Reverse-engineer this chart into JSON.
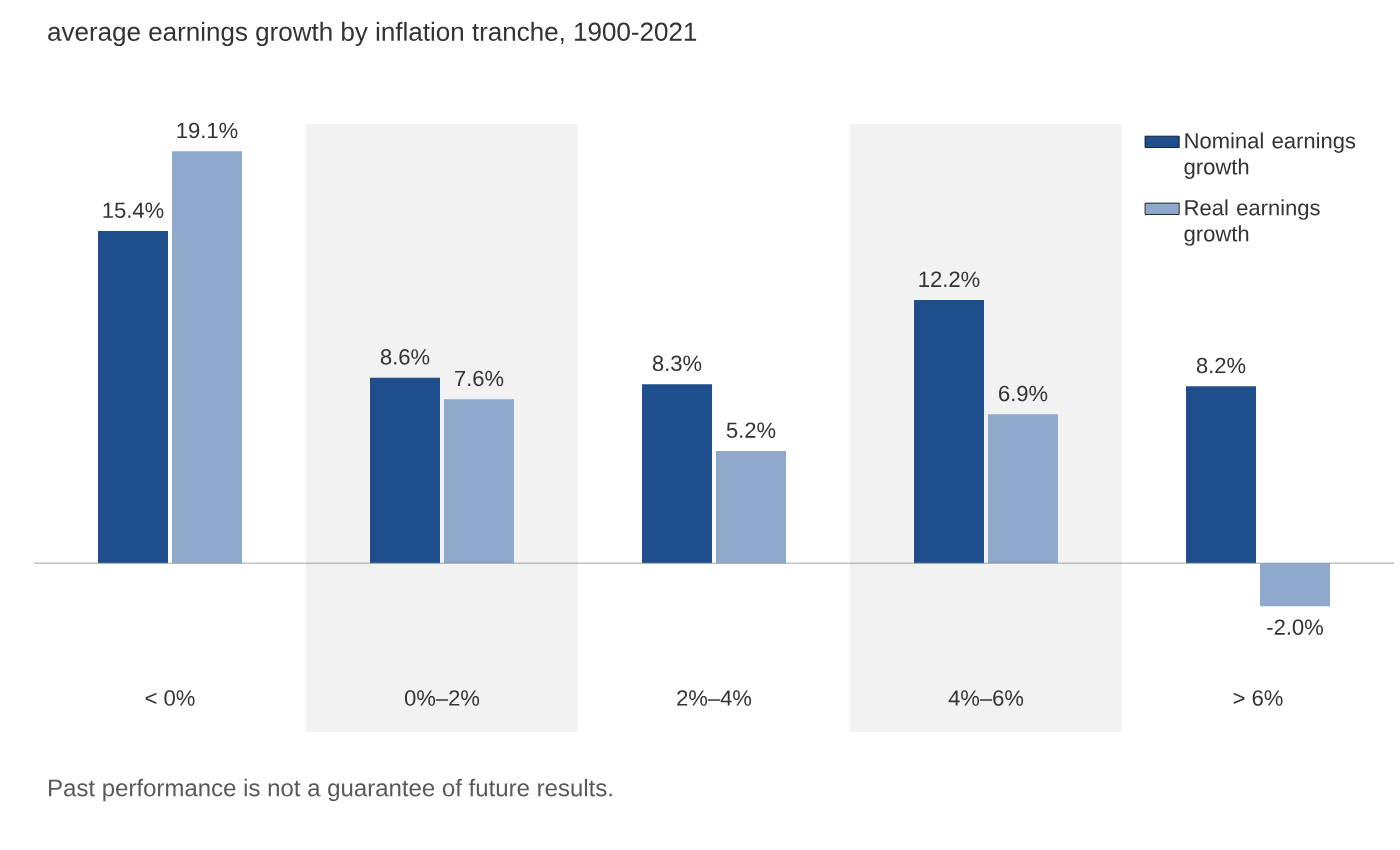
{
  "chart_data": {
    "type": "bar",
    "title": "average earnings growth by inflation tranche, 1900-2021",
    "categories": [
      "< 0%",
      "0%–2%",
      "2%–4%",
      "4%–6%",
      "> 6%"
    ],
    "series": [
      {
        "name": "Nominal earnings growth",
        "color": "#1f4e8c",
        "values": [
          15.4,
          8.6,
          8.3,
          12.2,
          8.2
        ],
        "value_labels": [
          "15.4%",
          "8.6%",
          "8.3%",
          "12.2%",
          "8.2%"
        ]
      },
      {
        "name": "Real earnings growth",
        "color": "#8fa9cc",
        "values": [
          19.1,
          7.6,
          5.2,
          6.9,
          -2.0
        ],
        "value_labels": [
          "19.1%",
          "7.6%",
          "5.2%",
          "6.9%",
          "-2.0%"
        ]
      }
    ],
    "bands": [
      {
        "axis": "x",
        "from": "0%–2%",
        "to": "0%–2%",
        "color": "#f2f2f2"
      },
      {
        "axis": "x",
        "from": "4%–6%",
        "to": "4%–6%",
        "color": "#f2f2f2"
      }
    ],
    "legend": "top right",
    "annotations": [
      "Past performance is not a guarantee of future results."
    ]
  }
}
